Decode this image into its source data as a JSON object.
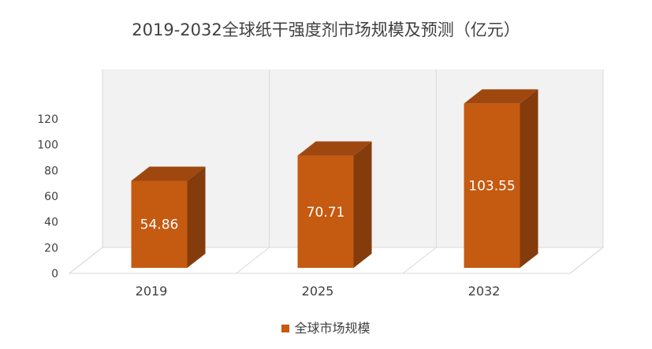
{
  "chart_data": {
    "type": "bar",
    "title": "2019-2032全球纸干强度剂市场规模及预测（亿元）",
    "categories": [
      "2019",
      "2025",
      "2032"
    ],
    "series": [
      {
        "name": "全球市场规模",
        "values": [
          54.86,
          70.71,
          103.55
        ],
        "labels": [
          "54.86",
          "70.71",
          "103.55"
        ]
      }
    ],
    "ylim": [
      0,
      120
    ],
    "yticks": [
      0,
      20,
      40,
      60,
      80,
      100,
      120
    ],
    "xlabel": "",
    "ylabel": "",
    "grid": true,
    "legend_position": "bottom",
    "style": "3d-column",
    "colors": {
      "bar_front": "#C55A11",
      "bar_side": "#843C0C",
      "bar_top": "#9E4810",
      "back_wall": "#F2F2F2",
      "grid": "#D9D9D9",
      "text": "#404040"
    }
  }
}
